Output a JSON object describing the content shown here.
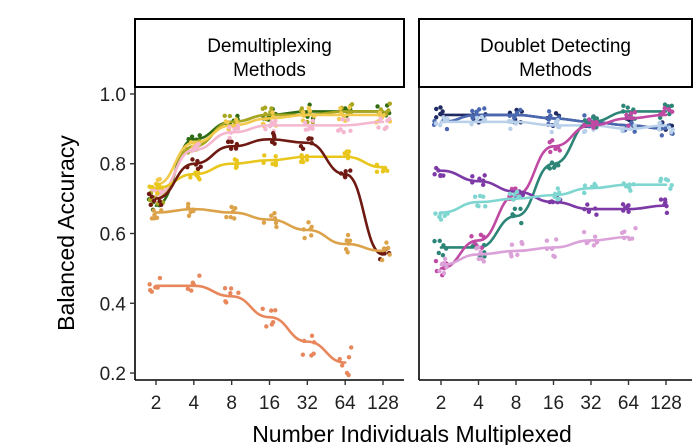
{
  "chart_data": [
    {
      "type": "scatter",
      "panel": "Demultiplexing Methods",
      "title": "Demultiplexing\nMethods",
      "xlabel": "Number Individuals Multiplexed",
      "ylabel": "Balanced Accuracy",
      "x": [
        2,
        4,
        8,
        16,
        32,
        64,
        128
      ],
      "xscale": "log2",
      "ylim": [
        0.18,
        1.02
      ],
      "yticks": [
        0.2,
        0.4,
        0.6,
        0.8,
        1.0
      ],
      "ytick_labels": [
        "0.2",
        "0.4",
        "0.6",
        "0.8",
        "1.0"
      ],
      "grid": false,
      "series": [
        {
          "color": "#2e6b12",
          "values": [
            0.68,
            0.87,
            0.92,
            0.94,
            0.95,
            0.95,
            0.95
          ]
        },
        {
          "color": "#a9a620",
          "values": [
            0.7,
            0.85,
            0.92,
            0.94,
            0.94,
            0.95,
            0.95
          ]
        },
        {
          "color": "#f2c94c",
          "values": [
            0.74,
            0.86,
            0.91,
            0.93,
            0.94,
            0.94,
            0.94
          ]
        },
        {
          "color": "#f5b7cf",
          "values": [
            0.71,
            0.84,
            0.89,
            0.91,
            0.91,
            0.91,
            0.92
          ]
        },
        {
          "color": "#e8c61c",
          "values": [
            0.73,
            0.77,
            0.8,
            0.81,
            0.82,
            0.82,
            0.79
          ]
        },
        {
          "color": "#6e1a12",
          "values": [
            0.7,
            0.8,
            0.85,
            0.87,
            0.86,
            0.77,
            0.54
          ]
        },
        {
          "color": "#dca24a",
          "values": [
            0.66,
            0.67,
            0.66,
            0.64,
            0.61,
            0.57,
            0.55
          ]
        },
        {
          "color": "#e8875c",
          "values": [
            0.45,
            0.45,
            0.42,
            0.36,
            0.29,
            0.23,
            null
          ]
        }
      ]
    },
    {
      "type": "scatter",
      "panel": "Doublet Detecting Methods",
      "title": "Doublet Detecting\nMethods",
      "xlabel": "Number Individuals Multiplexed",
      "ylabel": "Balanced Accuracy",
      "x": [
        2,
        4,
        8,
        16,
        32,
        64,
        128
      ],
      "xscale": "log2",
      "ylim": [
        0.18,
        1.02
      ],
      "yticks": [
        0.2,
        0.4,
        0.6,
        0.8,
        1.0
      ],
      "grid": false,
      "series": [
        {
          "color": "#1f2a63",
          "values": [
            0.94,
            0.94,
            0.94,
            0.93,
            0.92,
            0.91,
            0.9
          ]
        },
        {
          "color": "#4a68b0",
          "values": [
            0.92,
            0.94,
            0.94,
            0.93,
            0.92,
            0.91,
            0.9
          ]
        },
        {
          "color": "#b9d0ea",
          "values": [
            0.92,
            0.92,
            0.92,
            0.91,
            0.91,
            0.9,
            0.91
          ]
        },
        {
          "color": "#2c8577",
          "values": [
            0.56,
            0.56,
            0.65,
            0.8,
            0.92,
            0.95,
            0.95
          ]
        },
        {
          "color": "#c04aa3",
          "values": [
            0.5,
            0.58,
            0.71,
            0.85,
            0.91,
            0.93,
            0.94
          ]
        },
        {
          "color": "#7d3aa6",
          "values": [
            0.78,
            0.75,
            0.72,
            0.69,
            0.67,
            0.67,
            0.68
          ]
        },
        {
          "color": "#7fd6d0",
          "values": [
            0.66,
            0.69,
            0.7,
            0.71,
            0.73,
            0.74,
            0.74
          ]
        },
        {
          "color": "#dba1d9",
          "values": [
            0.51,
            0.54,
            0.55,
            0.56,
            0.58,
            0.59,
            null
          ]
        }
      ]
    }
  ]
}
